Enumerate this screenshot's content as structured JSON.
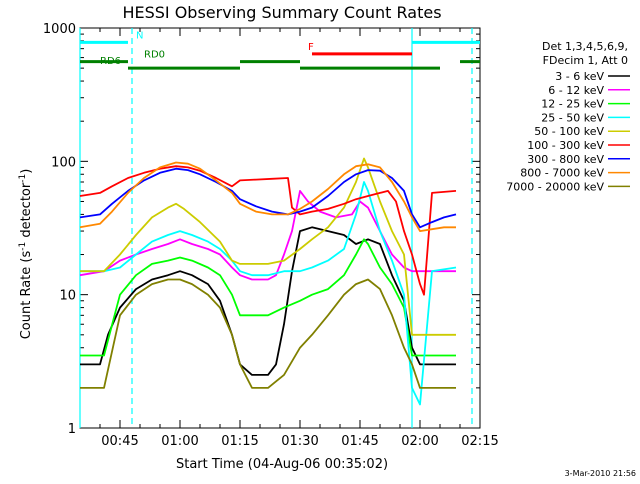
{
  "chart_data": {
    "type": "line",
    "title": "HESSI Observing Summary Count Rates",
    "xlabel": "Start Time (04-Aug-06 00:35:02)",
    "ylabel": "Count Rate (s",
    "ylabel_sup": "-1",
    "ylabel_mid": " detector",
    "ylabel_sup2": "-1",
    "ylabel_end": ")",
    "x_unit": "minutes after 00:35:02",
    "xlim": [
      0,
      100
    ],
    "ylim": [
      1,
      1000
    ],
    "yscale": "log",
    "xticks": [
      {
        "v": 10,
        "label": "00:45"
      },
      {
        "v": 25,
        "label": "01:00"
      },
      {
        "v": 40,
        "label": "01:15"
      },
      {
        "v": 55,
        "label": "01:30"
      },
      {
        "v": 70,
        "label": "01:45"
      },
      {
        "v": 85,
        "label": "02:00"
      },
      {
        "v": 100,
        "label": "02:15"
      }
    ],
    "yticks": [
      {
        "v": 1,
        "label": "1"
      },
      {
        "v": 10,
        "label": "10"
      },
      {
        "v": 100,
        "label": "100"
      },
      {
        "v": 1000,
        "label": "1000"
      }
    ],
    "legend_header": [
      "Det 1,3,4,5,6,9,",
      "FDecim 1, Att 0"
    ],
    "legend_position": "right",
    "footer_date": "3-Mar-2010 21:56",
    "series": [
      {
        "name": "3 - 6 keV",
        "color": "#000000",
        "points": [
          [
            0,
            3
          ],
          [
            5,
            3
          ],
          [
            7,
            5
          ],
          [
            10,
            8
          ],
          [
            14,
            11
          ],
          [
            18,
            13
          ],
          [
            22,
            14
          ],
          [
            25,
            15
          ],
          [
            28,
            14
          ],
          [
            32,
            12
          ],
          [
            35,
            9
          ],
          [
            38,
            5
          ],
          [
            40,
            3
          ],
          [
            43,
            2.5
          ],
          [
            47,
            2.5
          ],
          [
            49,
            3
          ],
          [
            51,
            6
          ],
          [
            53,
            15
          ],
          [
            55,
            30
          ],
          [
            58,
            32
          ],
          [
            62,
            30
          ],
          [
            66,
            28
          ],
          [
            69,
            24
          ],
          [
            72,
            26
          ],
          [
            75,
            24
          ],
          [
            78,
            14
          ],
          [
            81,
            9
          ],
          [
            83,
            4
          ],
          [
            85,
            3
          ],
          [
            88,
            3
          ],
          [
            91,
            3
          ],
          [
            94,
            3
          ]
        ]
      },
      {
        "name": "6 - 12 keV",
        "color": "#ff00ff",
        "points": [
          [
            0,
            14
          ],
          [
            6,
            15
          ],
          [
            10,
            18
          ],
          [
            14,
            20
          ],
          [
            18,
            22
          ],
          [
            22,
            24
          ],
          [
            25,
            26
          ],
          [
            28,
            24
          ],
          [
            32,
            22
          ],
          [
            35,
            20
          ],
          [
            38,
            16
          ],
          [
            40,
            14
          ],
          [
            43,
            13
          ],
          [
            47,
            13
          ],
          [
            49,
            14
          ],
          [
            51,
            20
          ],
          [
            53,
            30
          ],
          [
            55,
            60
          ],
          [
            57,
            50
          ],
          [
            60,
            42
          ],
          [
            64,
            38
          ],
          [
            68,
            40
          ],
          [
            70,
            50
          ],
          [
            72,
            45
          ],
          [
            75,
            30
          ],
          [
            78,
            20
          ],
          [
            81,
            16
          ],
          [
            83,
            15
          ],
          [
            85,
            15
          ],
          [
            88,
            15
          ],
          [
            94,
            15
          ]
        ]
      },
      {
        "name": "12 - 25 keV",
        "color": "#00ff00",
        "points": [
          [
            0,
            3.5
          ],
          [
            6,
            3.5
          ],
          [
            10,
            10
          ],
          [
            14,
            14
          ],
          [
            18,
            17
          ],
          [
            22,
            18
          ],
          [
            25,
            19
          ],
          [
            28,
            18
          ],
          [
            32,
            16
          ],
          [
            35,
            14
          ],
          [
            38,
            10
          ],
          [
            40,
            7
          ],
          [
            43,
            7
          ],
          [
            47,
            7
          ],
          [
            51,
            8
          ],
          [
            55,
            9
          ],
          [
            58,
            10
          ],
          [
            62,
            11
          ],
          [
            66,
            14
          ],
          [
            69,
            20
          ],
          [
            71,
            26
          ],
          [
            72,
            24
          ],
          [
            75,
            16
          ],
          [
            78,
            12
          ],
          [
            81,
            8
          ],
          [
            83,
            3.5
          ],
          [
            85,
            3.5
          ],
          [
            88,
            3.5
          ],
          [
            94,
            3.5
          ]
        ]
      },
      {
        "name": "25 - 50 keV",
        "color": "#00ffff",
        "points": [
          [
            0,
            15
          ],
          [
            6,
            15
          ],
          [
            10,
            16
          ],
          [
            14,
            20
          ],
          [
            18,
            25
          ],
          [
            22,
            28
          ],
          [
            25,
            30
          ],
          [
            28,
            28
          ],
          [
            32,
            25
          ],
          [
            35,
            22
          ],
          [
            38,
            18
          ],
          [
            40,
            15
          ],
          [
            43,
            14
          ],
          [
            47,
            14
          ],
          [
            51,
            15
          ],
          [
            55,
            15
          ],
          [
            58,
            16
          ],
          [
            62,
            18
          ],
          [
            66,
            22
          ],
          [
            69,
            40
          ],
          [
            71,
            70
          ],
          [
            72,
            60
          ],
          [
            75,
            30
          ],
          [
            78,
            18
          ],
          [
            81,
            10
          ],
          [
            83,
            2
          ],
          [
            85,
            1.5
          ],
          [
            88,
            15
          ],
          [
            94,
            16
          ]
        ]
      },
      {
        "name": "50 - 100 keV",
        "color": "#cccc00",
        "points": [
          [
            0,
            15
          ],
          [
            6,
            15
          ],
          [
            10,
            20
          ],
          [
            14,
            28
          ],
          [
            18,
            38
          ],
          [
            22,
            45
          ],
          [
            24,
            48
          ],
          [
            26,
            44
          ],
          [
            30,
            35
          ],
          [
            35,
            25
          ],
          [
            38,
            18
          ],
          [
            40,
            17
          ],
          [
            43,
            17
          ],
          [
            47,
            17
          ],
          [
            51,
            18
          ],
          [
            55,
            22
          ],
          [
            58,
            26
          ],
          [
            62,
            32
          ],
          [
            66,
            45
          ],
          [
            69,
            70
          ],
          [
            71,
            105
          ],
          [
            72,
            90
          ],
          [
            75,
            50
          ],
          [
            78,
            30
          ],
          [
            81,
            20
          ],
          [
            83,
            5
          ],
          [
            85,
            5
          ],
          [
            88,
            5
          ],
          [
            94,
            5
          ]
        ]
      },
      {
        "name": "100 - 300 keV",
        "color": "#ff0000",
        "points": [
          [
            0,
            55
          ],
          [
            5,
            58
          ],
          [
            8,
            65
          ],
          [
            12,
            75
          ],
          [
            16,
            82
          ],
          [
            20,
            88
          ],
          [
            24,
            92
          ],
          [
            27,
            90
          ],
          [
            30,
            85
          ],
          [
            34,
            75
          ],
          [
            38,
            65
          ],
          [
            40,
            72
          ],
          [
            44,
            73
          ],
          [
            48,
            74
          ],
          [
            52,
            75
          ],
          [
            53,
            45
          ],
          [
            55,
            40
          ],
          [
            58,
            42
          ],
          [
            62,
            44
          ],
          [
            66,
            48
          ],
          [
            69,
            52
          ],
          [
            72,
            55
          ],
          [
            75,
            58
          ],
          [
            77,
            60
          ],
          [
            79,
            50
          ],
          [
            81,
            30
          ],
          [
            83,
            20
          ],
          [
            85,
            12
          ],
          [
            86,
            10
          ],
          [
            88,
            58
          ],
          [
            94,
            60
          ]
        ]
      },
      {
        "name": "300 - 800 keV",
        "color": "#0000ff",
        "points": [
          [
            0,
            38
          ],
          [
            5,
            40
          ],
          [
            8,
            48
          ],
          [
            12,
            60
          ],
          [
            16,
            72
          ],
          [
            20,
            82
          ],
          [
            24,
            88
          ],
          [
            27,
            86
          ],
          [
            30,
            80
          ],
          [
            34,
            70
          ],
          [
            38,
            60
          ],
          [
            40,
            52
          ],
          [
            44,
            46
          ],
          [
            48,
            42
          ],
          [
            52,
            40
          ],
          [
            55,
            42
          ],
          [
            58,
            45
          ],
          [
            62,
            55
          ],
          [
            66,
            70
          ],
          [
            69,
            80
          ],
          [
            72,
            86
          ],
          [
            75,
            85
          ],
          [
            78,
            75
          ],
          [
            81,
            60
          ],
          [
            83,
            40
          ],
          [
            85,
            32
          ],
          [
            88,
            35
          ],
          [
            91,
            38
          ],
          [
            94,
            40
          ]
        ]
      },
      {
        "name": "800 - 7000 keV",
        "color": "#ff8800",
        "points": [
          [
            0,
            32
          ],
          [
            5,
            34
          ],
          [
            8,
            42
          ],
          [
            12,
            58
          ],
          [
            16,
            75
          ],
          [
            20,
            90
          ],
          [
            24,
            98
          ],
          [
            27,
            96
          ],
          [
            30,
            88
          ],
          [
            34,
            72
          ],
          [
            38,
            58
          ],
          [
            40,
            48
          ],
          [
            44,
            42
          ],
          [
            48,
            40
          ],
          [
            52,
            40
          ],
          [
            55,
            44
          ],
          [
            58,
            50
          ],
          [
            62,
            62
          ],
          [
            66,
            80
          ],
          [
            69,
            92
          ],
          [
            72,
            95
          ],
          [
            75,
            90
          ],
          [
            78,
            70
          ],
          [
            81,
            50
          ],
          [
            83,
            38
          ],
          [
            85,
            30
          ],
          [
            88,
            31
          ],
          [
            91,
            32
          ],
          [
            94,
            32
          ]
        ]
      },
      {
        "name": "7000 - 20000 keV",
        "color": "#808000",
        "points": [
          [
            0,
            2
          ],
          [
            6,
            2
          ],
          [
            10,
            7
          ],
          [
            14,
            10
          ],
          [
            18,
            12
          ],
          [
            22,
            13
          ],
          [
            25,
            13
          ],
          [
            28,
            12
          ],
          [
            32,
            10
          ],
          [
            35,
            8
          ],
          [
            38,
            5
          ],
          [
            40,
            3
          ],
          [
            43,
            2
          ],
          [
            47,
            2
          ],
          [
            51,
            2.5
          ],
          [
            55,
            4
          ],
          [
            58,
            5
          ],
          [
            62,
            7
          ],
          [
            66,
            10
          ],
          [
            69,
            12
          ],
          [
            72,
            13
          ],
          [
            75,
            11
          ],
          [
            78,
            7
          ],
          [
            81,
            4
          ],
          [
            83,
            3
          ],
          [
            85,
            2
          ],
          [
            88,
            2
          ],
          [
            94,
            2
          ]
        ]
      }
    ],
    "state_bars": [
      {
        "label": "N",
        "color": "#00ffff",
        "level": 780,
        "segments": [
          [
            0,
            12
          ],
          [
            83,
            100
          ]
        ],
        "label_at": 14
      },
      {
        "label": "F",
        "color": "#ff0000",
        "level": 640,
        "segments": [
          [
            58,
            83
          ]
        ],
        "label_at": 57
      },
      {
        "label": "RD0",
        "color": "#008000",
        "level": 560,
        "segments": [
          [
            0,
            12
          ],
          [
            40,
            55
          ],
          [
            95,
            100
          ]
        ],
        "label_at": 16
      },
      {
        "label": "RD6",
        "color": "#008000",
        "level": 500,
        "segments": [
          [
            12,
            40
          ],
          [
            55,
            90
          ]
        ],
        "label_at": 5
      }
    ],
    "vlines": [
      {
        "v": 0,
        "color": "#00ffff",
        "dashed": false
      },
      {
        "v": 13,
        "color": "#00ffff",
        "dashed": true
      },
      {
        "v": 83,
        "color": "#00ffff",
        "dashed": false
      },
      {
        "v": 98,
        "color": "#00ffff",
        "dashed": true
      }
    ]
  }
}
